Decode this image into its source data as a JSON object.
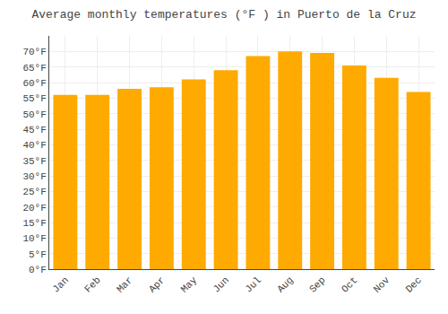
{
  "chart_data": {
    "type": "bar",
    "title": "Average monthly temperatures (°F ) in Puerto de la Cruz",
    "categories": [
      "Jan",
      "Feb",
      "Mar",
      "Apr",
      "May",
      "Jun",
      "Jul",
      "Aug",
      "Sep",
      "Oct",
      "Nov",
      "Dec"
    ],
    "values": [
      56,
      56,
      58,
      58.5,
      61,
      64,
      68.5,
      70,
      69.5,
      65.5,
      61.5,
      57
    ],
    "color": "#FFAA00",
    "ylim": [
      0,
      75
    ],
    "yticks": [
      {
        "value": 0,
        "label": "0°F"
      },
      {
        "value": 5,
        "label": "5°F"
      },
      {
        "value": 10,
        "label": "10°F"
      },
      {
        "value": 15,
        "label": "15°F"
      },
      {
        "value": 20,
        "label": "20°F"
      },
      {
        "value": 25,
        "label": "25°F"
      },
      {
        "value": 30,
        "label": "30°F"
      },
      {
        "value": 35,
        "label": "35°F"
      },
      {
        "value": 40,
        "label": "40°F"
      },
      {
        "value": 45,
        "label": "45°F"
      },
      {
        "value": 50,
        "label": "50°F"
      },
      {
        "value": 55,
        "label": "55°F"
      },
      {
        "value": 60,
        "label": "60°F"
      },
      {
        "value": 65,
        "label": "65°F"
      },
      {
        "value": 70,
        "label": "70°F"
      }
    ],
    "grid": true
  }
}
